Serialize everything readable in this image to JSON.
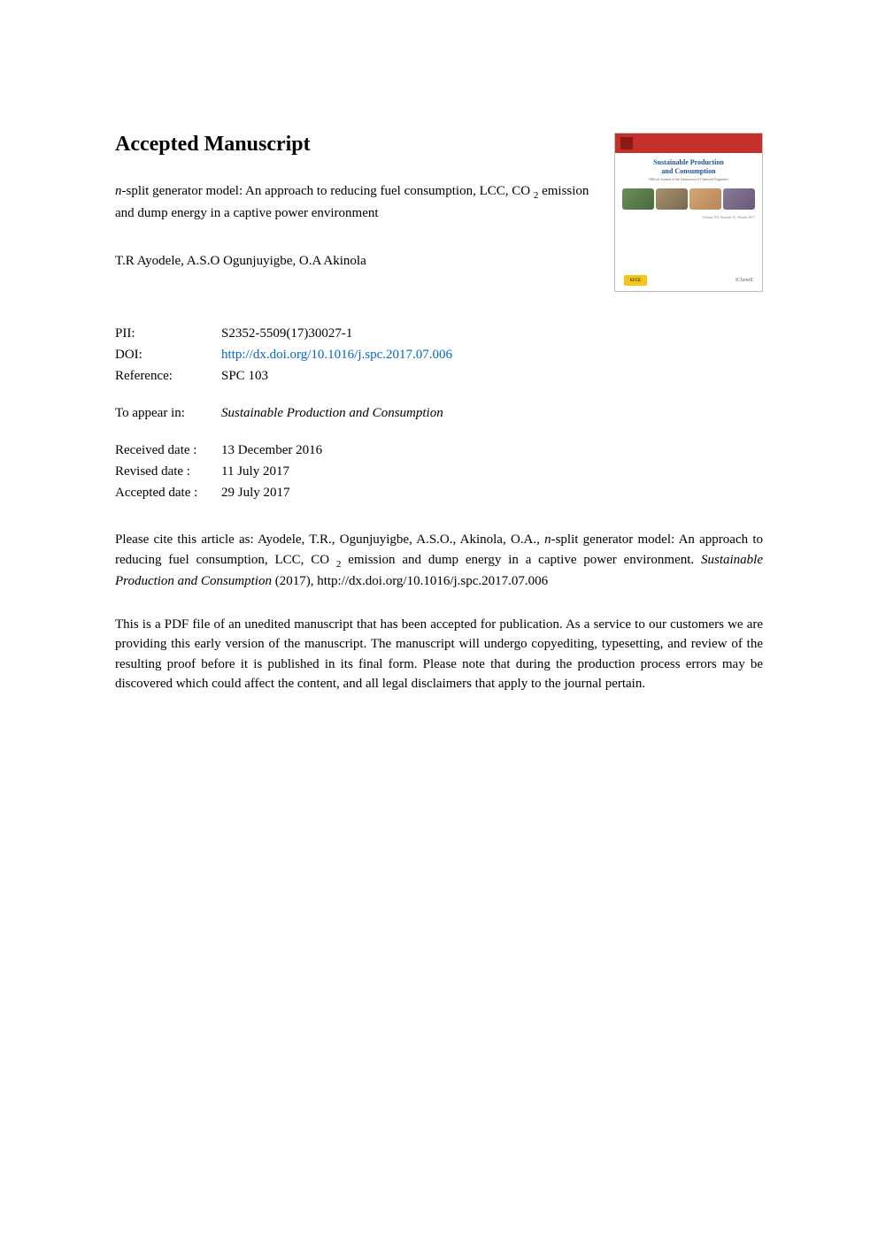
{
  "heading": "Accepted Manuscript",
  "article": {
    "title_prefix_italic": "n",
    "title_rest": "-split generator model: An approach to reducing fuel consumption, LCC, CO ",
    "title_sub": "2",
    "title_tail": " emission and dump energy in a captive power environment"
  },
  "authors": "T.R Ayodele, A.S.O Ogunjuyigbe, O.A Akinola",
  "journal_cover": {
    "title_line1": "Sustainable Production",
    "title_line2": "and Consumption",
    "subtitle": "Official Journal of the Institution of Chemical Engineers",
    "caption": "Volume XX Number X | Month 2017",
    "badge": "EFCE",
    "logo": "IChemE"
  },
  "meta": {
    "pii_label": "PII:",
    "pii": "S2352-5509(17)30027-1",
    "doi_label": "DOI:",
    "doi": "http://dx.doi.org/10.1016/j.spc.2017.07.006",
    "ref_label": "Reference:",
    "ref": "SPC 103",
    "appear_label": "To appear in:",
    "appear": "Sustainable Production and Consumption",
    "received_label": "Received date :",
    "received": "13 December 2016",
    "revised_label": "Revised date :",
    "revised": "11 July 2017",
    "accepted_label": "Accepted date :",
    "accepted": "29 July 2017"
  },
  "citation": {
    "pre": "Please cite this article as: Ayodele, T.R., Ogunjuyigbe, A.S.O., Akinola, O.A., ",
    "italic_n": "n",
    "mid": "-split generator model: An approach to reducing fuel consumption, LCC, CO ",
    "sub": "2",
    "mid2": " emission and dump energy in a captive power environment. ",
    "journal_italic": "Sustainable Production and Consumption",
    "year": " (2017), http://dx.doi.org/10.1016/j.spc.2017.07.006"
  },
  "disclaimer": "This is a PDF file of an unedited manuscript that has been accepted for publication. As a service to our customers we are providing this early version of the manuscript. The manuscript will undergo copyediting, typesetting, and review of the resulting proof before it is published in its final form. Please note that during the production process errors may be discovered which could affect the content, and all legal disclaimers that apply to the journal pertain.",
  "colors": {
    "link": "#0066cc",
    "cover_red": "#c4302b",
    "cover_blue": "#1a5490"
  }
}
